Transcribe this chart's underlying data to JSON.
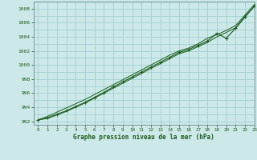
{
  "title": "Graphe pression niveau de la mer (hPa)",
  "bg_color": "#cce8e8",
  "grid_color": "#99cccc",
  "line_color": "#1a5c1a",
  "marker_color": "#1a5c1a",
  "xlim": [
    -0.5,
    23
  ],
  "ylim": [
    991.5,
    1009.0
  ],
  "yticks": [
    992,
    994,
    996,
    998,
    1000,
    1002,
    1004,
    1006,
    1008
  ],
  "xticks": [
    0,
    1,
    2,
    3,
    4,
    5,
    6,
    7,
    8,
    9,
    10,
    11,
    12,
    13,
    14,
    15,
    16,
    17,
    18,
    19,
    20,
    21,
    22,
    23
  ],
  "line1_x": [
    0,
    1,
    2,
    3,
    4,
    5,
    6,
    7,
    8,
    9,
    10,
    11,
    12,
    13,
    14,
    15,
    16,
    17,
    18,
    19,
    20,
    21,
    22,
    23
  ],
  "line1_y": [
    992.2,
    992.5,
    993.0,
    993.5,
    994.1,
    994.7,
    995.4,
    996.1,
    996.9,
    997.6,
    998.3,
    999.0,
    999.7,
    1000.4,
    1001.1,
    1001.8,
    1002.2,
    1002.8,
    1003.4,
    1004.5,
    1003.8,
    1005.2,
    1006.8,
    1008.4
  ],
  "line2_x": [
    0,
    1,
    2,
    3,
    4,
    5,
    6,
    7,
    8,
    9,
    10,
    11,
    12,
    13,
    14,
    15,
    16,
    17,
    18,
    19,
    20,
    21,
    22,
    23
  ],
  "line2_y": [
    992.2,
    992.7,
    993.3,
    993.9,
    994.5,
    995.1,
    995.8,
    996.5,
    997.2,
    997.9,
    998.6,
    999.3,
    1000.0,
    1000.7,
    1001.4,
    1002.0,
    1002.4,
    1003.0,
    1003.8,
    1004.3,
    1004.9,
    1005.6,
    1007.1,
    1008.6
  ],
  "line3_x": [
    0,
    1,
    2,
    3,
    4,
    5,
    6,
    7,
    8,
    9,
    10,
    11,
    12,
    13,
    14,
    15,
    16,
    17,
    18,
    19,
    20,
    21,
    22,
    23
  ],
  "line3_y": [
    992.2,
    992.4,
    992.9,
    993.4,
    994.0,
    994.6,
    995.3,
    996.0,
    996.7,
    997.4,
    998.1,
    998.8,
    999.5,
    1000.2,
    1000.9,
    1001.6,
    1002.0,
    1002.6,
    1003.2,
    1004.0,
    1004.6,
    1005.3,
    1006.9,
    1008.3
  ],
  "figsize": [
    3.2,
    2.0
  ],
  "dpi": 100
}
